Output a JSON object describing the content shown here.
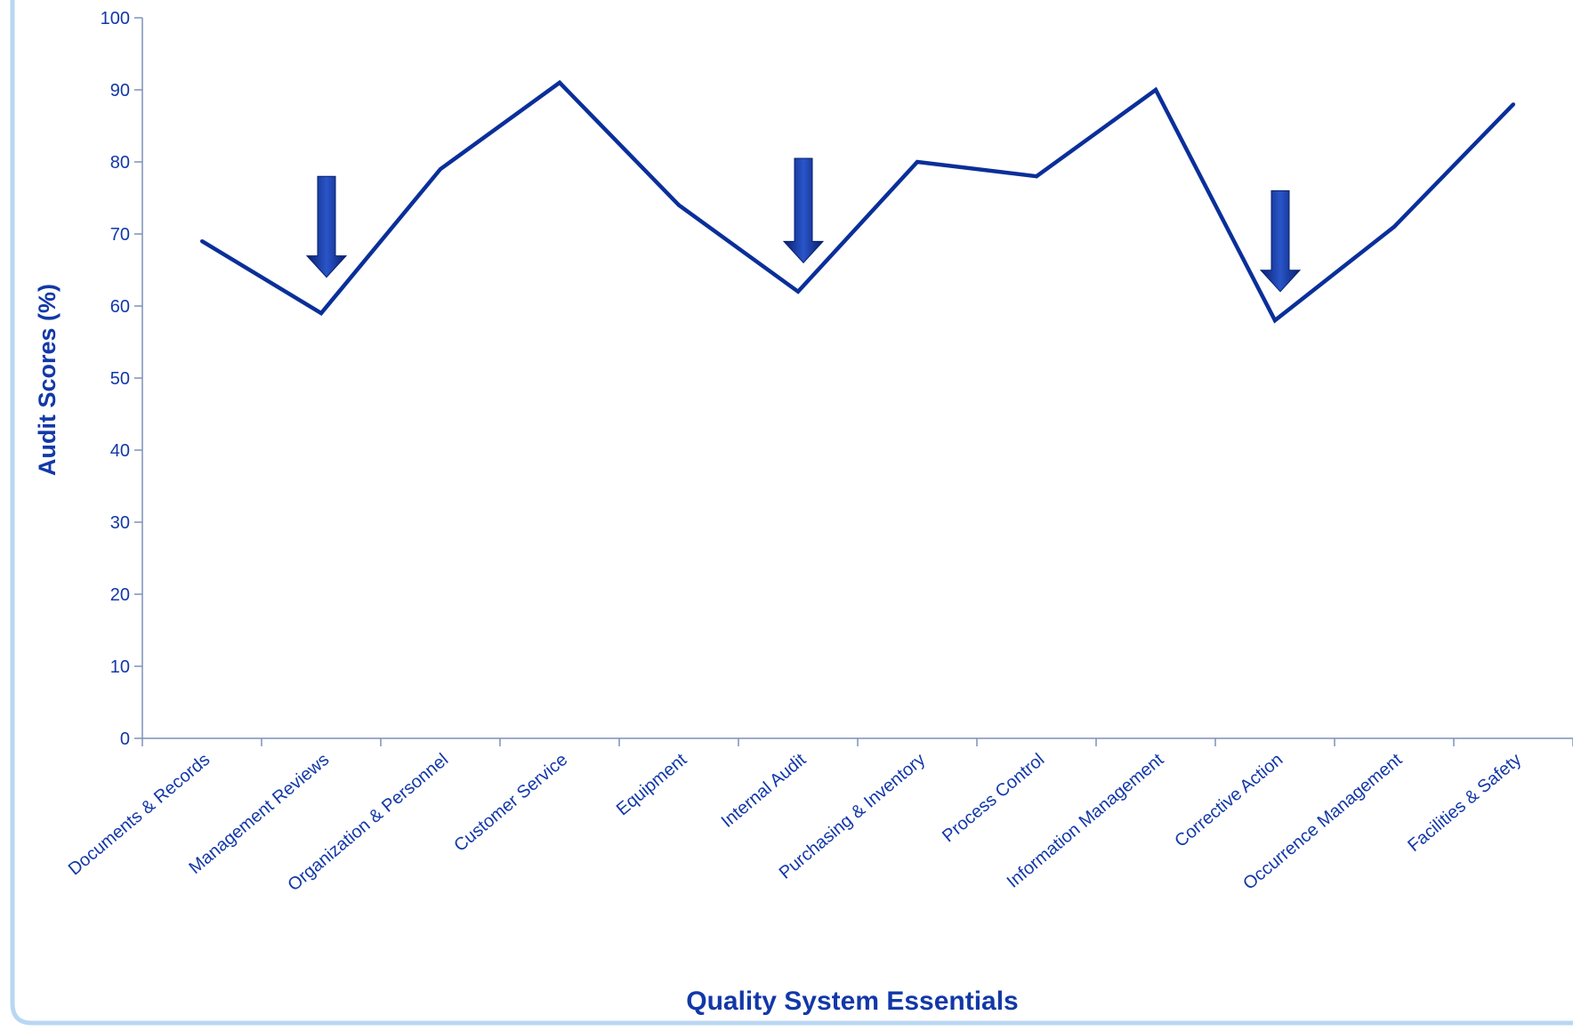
{
  "colors": {
    "line": "#0a2f9a",
    "axis_text": "#1238a8",
    "axis_line": "#7f90b8",
    "arrow_dark": "#071f6e",
    "arrow_light": "#2a55c8",
    "frame": "#b9d7f2",
    "background": "#ffffff"
  },
  "chart_data": {
    "type": "line",
    "title": "",
    "xlabel": "Quality System Essentials",
    "ylabel": "Audit Scores (%)",
    "ylim": [
      0,
      100
    ],
    "yticks": [
      0,
      10,
      20,
      30,
      40,
      50,
      60,
      70,
      80,
      90,
      100
    ],
    "categories": [
      "Documents & Records",
      "Management Reviews",
      "Organization & Personnel",
      "Customer Service",
      "Equipment",
      "Internal Audit",
      "Purchasing & Inventory",
      "Process Control",
      "Information Management",
      "Corrective Action",
      "Occurrence Management",
      "Facilities & Safety"
    ],
    "series": [
      {
        "values": [
          69,
          59,
          79,
          91,
          74,
          62,
          80,
          78,
          90,
          58,
          71,
          88
        ]
      }
    ],
    "grid": false,
    "legend": "none",
    "annotations": [
      {
        "type": "down-arrow",
        "category": "Management Reviews",
        "from": 78,
        "to": 64
      },
      {
        "type": "down-arrow",
        "category": "Internal Audit",
        "from": 80.5,
        "to": 66
      },
      {
        "type": "down-arrow",
        "category": "Corrective Action",
        "from": 76,
        "to": 62
      }
    ]
  }
}
